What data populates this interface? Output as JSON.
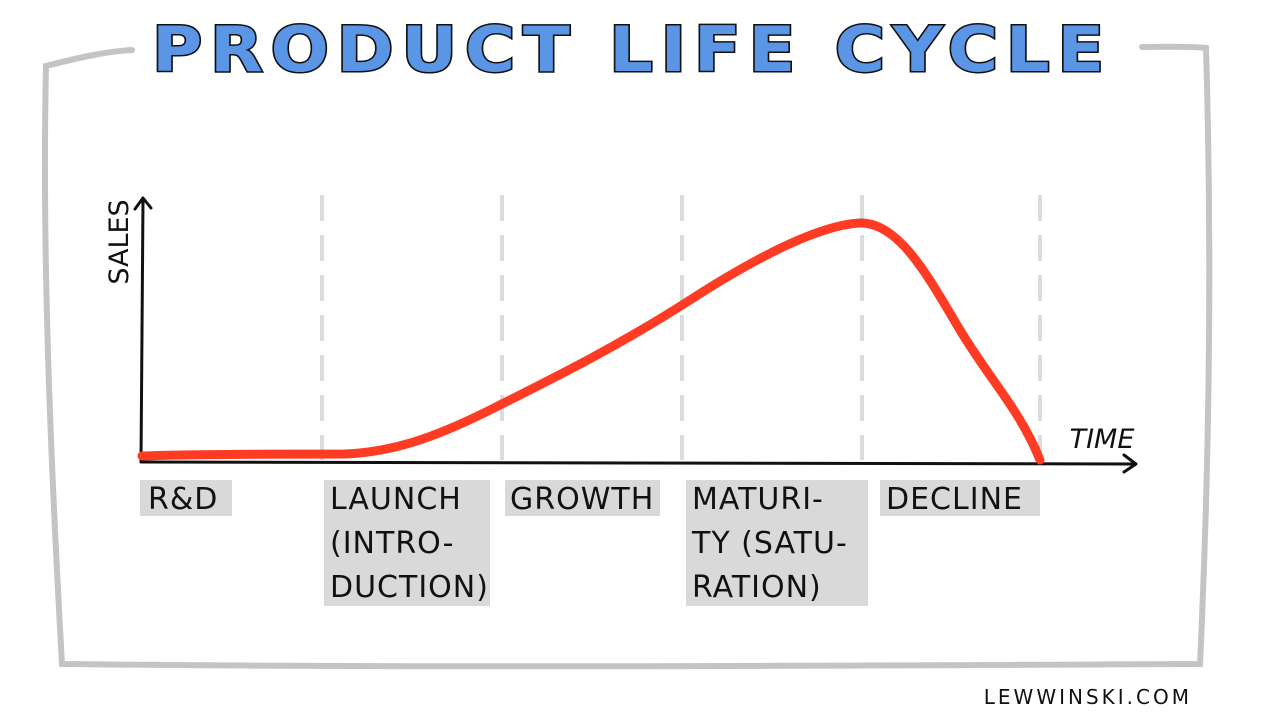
{
  "title": "PRODUCT LIFE CYCLE",
  "credit": "LEWWINSKI.COM",
  "colors": {
    "title_fill": "#5b95e6",
    "curve": "#ff3b24",
    "frame": "#c4c4c4",
    "label_highlight": "#d9d9d9",
    "stage_divider": "#dcdcdc"
  },
  "chart_data": {
    "type": "line",
    "ylabel": "SALES",
    "xlabel": "TIME",
    "stages": [
      {
        "label": "R&D",
        "lines": [
          "R&D"
        ]
      },
      {
        "label": "LAUNCH (INTRODUCTION)",
        "lines": [
          "LAUNCH",
          "(INTRO-",
          "DUCTION)"
        ]
      },
      {
        "label": "GROWTH",
        "lines": [
          "GROWTH"
        ]
      },
      {
        "label": "MATURITY (SATURATION)",
        "lines": [
          "MATURI-",
          "TY (SATU-",
          "RATION)"
        ]
      },
      {
        "label": "DECLINE",
        "lines": [
          "DECLINE"
        ]
      }
    ]
  }
}
